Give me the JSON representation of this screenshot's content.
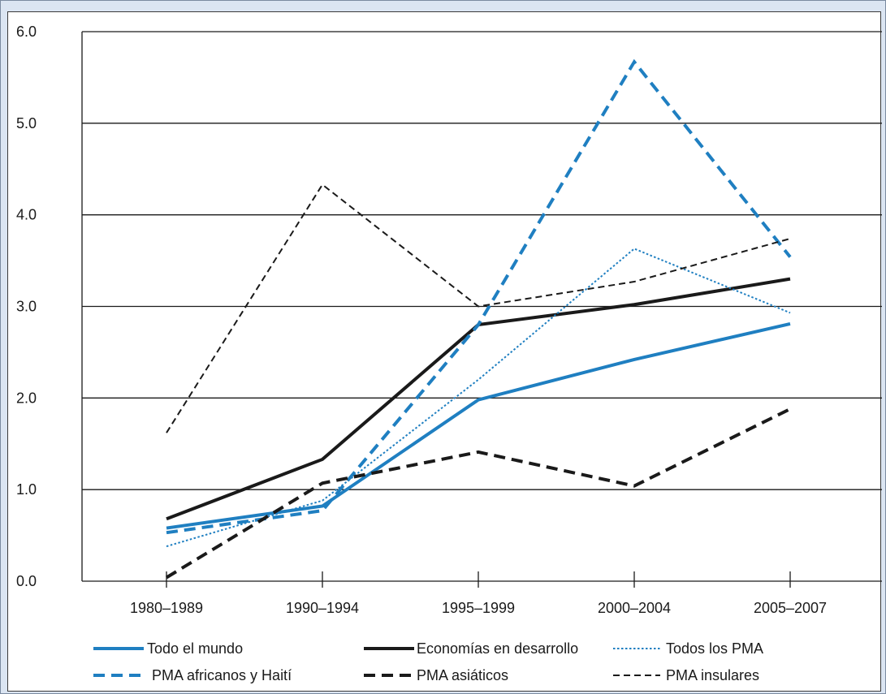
{
  "chart_data": {
    "type": "line",
    "title": "",
    "xlabel": "",
    "ylabel": "",
    "categories": [
      "1980–1989",
      "1990–1994",
      "1995–1999",
      "2000–2004",
      "2005–2007"
    ],
    "ylim": [
      0,
      6
    ],
    "yticks": [
      "0.0",
      "1.0",
      "2.0",
      "3.0",
      "4.0",
      "5.0",
      "6.0"
    ],
    "grid": "horizontal",
    "legend_position": "bottom",
    "series": [
      {
        "name": "Todo el mundo",
        "values": [
          0.58,
          0.82,
          1.98,
          2.42,
          2.81
        ],
        "color": "#1f7fc1",
        "style": "solid",
        "weight": "thick"
      },
      {
        "name": "Economías en desarrollo",
        "values": [
          0.68,
          1.33,
          2.8,
          3.02,
          3.3
        ],
        "color": "#1a1a1a",
        "style": "solid",
        "weight": "thick"
      },
      {
        "name": "Todos los PMA",
        "values": [
          0.38,
          0.88,
          2.2,
          3.63,
          2.93
        ],
        "color": "#1f7fc1",
        "style": "dotted",
        "weight": "thin"
      },
      {
        "name": "PMA africanos y Haití",
        "values": [
          0.53,
          0.77,
          2.8,
          5.67,
          3.54
        ],
        "color": "#1f7fc1",
        "style": "dashed",
        "weight": "thick"
      },
      {
        "name": "PMA asiáticos",
        "values": [
          0.04,
          1.07,
          1.41,
          1.04,
          1.88
        ],
        "color": "#1a1a1a",
        "style": "dashed",
        "weight": "thick"
      },
      {
        "name": "PMA insulares",
        "values": [
          1.62,
          4.33,
          3.0,
          3.27,
          3.74
        ],
        "color": "#1a1a1a",
        "style": "dashed",
        "weight": "thin"
      }
    ]
  }
}
